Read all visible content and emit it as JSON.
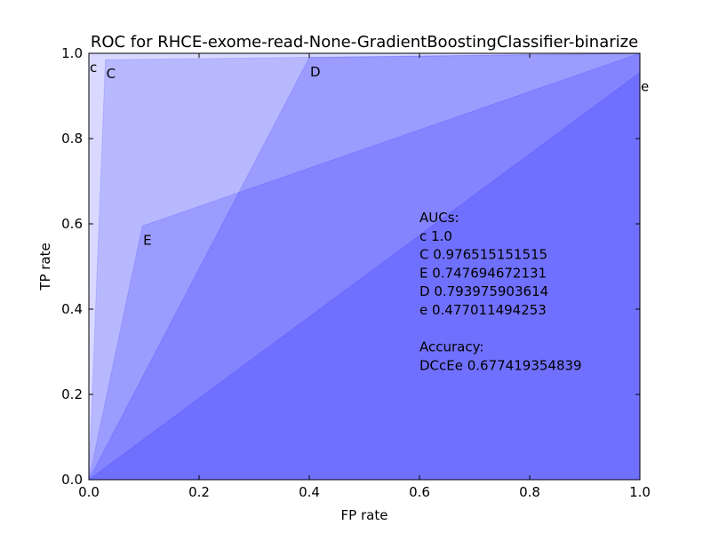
{
  "chart_data": {
    "type": "area",
    "title": "ROC for RHCE-exome-read-None-GradientBoostingClassifier-binarize",
    "xlabel": "FP rate",
    "ylabel": "TP rate",
    "xlim": [
      0.0,
      1.0
    ],
    "ylim": [
      0.0,
      1.0
    ],
    "xticks": [
      "0.0",
      "0.2",
      "0.4",
      "0.6",
      "0.8",
      "1.0"
    ],
    "yticks": [
      "0.0",
      "0.2",
      "0.4",
      "0.6",
      "0.8",
      "1.0"
    ],
    "fill_color": "#0000ff",
    "grid": false,
    "series": [
      {
        "name": "c",
        "points": [
          [
            0.0,
            0.0
          ],
          [
            0.0,
            1.0
          ],
          [
            1.0,
            1.0
          ]
        ]
      },
      {
        "name": "C",
        "points": [
          [
            0.0,
            0.0
          ],
          [
            0.03,
            0.985
          ],
          [
            1.0,
            1.0
          ]
        ]
      },
      {
        "name": "D",
        "points": [
          [
            0.0,
            0.0
          ],
          [
            0.4,
            0.99
          ],
          [
            1.0,
            1.0
          ]
        ]
      },
      {
        "name": "E",
        "points": [
          [
            0.0,
            0.0
          ],
          [
            0.097,
            0.595
          ],
          [
            1.0,
            1.0
          ]
        ]
      },
      {
        "name": "e",
        "points": [
          [
            0.0,
            0.0
          ],
          [
            1.0,
            0.955
          ],
          [
            1.0,
            1.0
          ]
        ]
      }
    ],
    "annotations": {
      "auc_header": "AUCs:",
      "aucs": [
        {
          "label": "c",
          "value": "1.0"
        },
        {
          "label": "C",
          "value": "0.976515151515"
        },
        {
          "label": "E",
          "value": "0.747694672131"
        },
        {
          "label": "D",
          "value": "0.793975903614"
        },
        {
          "label": "e",
          "value": "0.477011494253"
        }
      ],
      "accuracy_header": "Accuracy:",
      "accuracy": {
        "label": "DCcEe",
        "value": "0.677419354839"
      }
    }
  }
}
